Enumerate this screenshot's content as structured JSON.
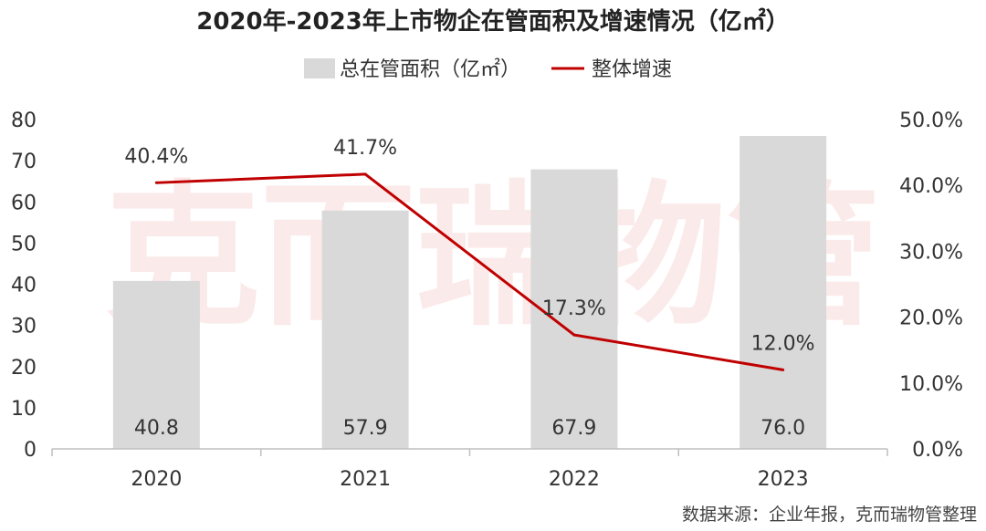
{
  "chart_data": {
    "type": "bar",
    "title": "2020年-2023年上市物企在管面积及增速情况（亿㎡）",
    "categories": [
      "2020",
      "2021",
      "2022",
      "2023"
    ],
    "series": [
      {
        "name": "总在管面积（亿㎡）",
        "type": "bar",
        "axis": "left",
        "values": [
          40.8,
          57.9,
          67.9,
          76.0
        ],
        "value_labels": [
          "40.8",
          "57.9",
          "67.9",
          "76.0"
        ],
        "color": "#d9d9d9"
      },
      {
        "name": "整体增速",
        "type": "line",
        "axis": "right",
        "values": [
          40.4,
          41.7,
          17.3,
          12.0
        ],
        "value_labels": [
          "40.4%",
          "41.7%",
          "17.3%",
          "12.0%"
        ],
        "color": "#c00000"
      }
    ],
    "y_left": {
      "min": 0,
      "max": 80,
      "ticks": [
        "0",
        "10",
        "20",
        "30",
        "40",
        "50",
        "60",
        "70",
        "80"
      ]
    },
    "y_right": {
      "min": 0,
      "max": 50,
      "ticks": [
        "0.0%",
        "10.0%",
        "20.0%",
        "30.0%",
        "40.0%",
        "50.0%"
      ]
    },
    "grid": false,
    "legend_position": "top-center",
    "watermark": "克而瑞物管",
    "source": "数据来源：企业年报，克而瑞物管整理"
  }
}
